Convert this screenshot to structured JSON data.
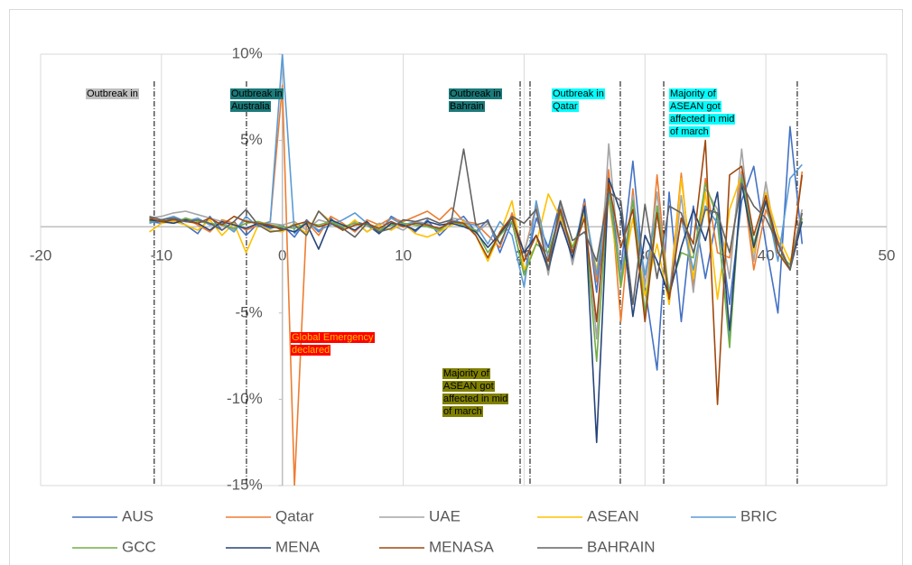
{
  "chart_data": {
    "type": "line",
    "x": [
      -11,
      -10,
      -9,
      -8,
      -7,
      -6,
      -5,
      -4,
      -3,
      -2,
      -1,
      0,
      1,
      2,
      3,
      4,
      5,
      6,
      7,
      8,
      9,
      10,
      11,
      12,
      13,
      14,
      15,
      16,
      17,
      18,
      19,
      20,
      21,
      22,
      23,
      24,
      25,
      26,
      27,
      28,
      29,
      30,
      31,
      32,
      33,
      34,
      35,
      36,
      37,
      38,
      39,
      40,
      41,
      42,
      43
    ],
    "series": [
      {
        "name": "AUS",
        "color": "#4472c4",
        "values": [
          0.3,
          0.2,
          0.5,
          0.1,
          -0.4,
          0.6,
          -0.2,
          0.3,
          -0.5,
          0.2,
          -0.1,
          0.1,
          -0.6,
          0.4,
          -0.3,
          0.5,
          -0.2,
          0.3,
          0.1,
          -0.4,
          0.6,
          0.2,
          -0.3,
          0.4,
          -0.5,
          0.2,
          0.6,
          -0.3,
          0.4,
          -1.5,
          0.3,
          -2.8,
          0.5,
          -1.2,
          1.5,
          -2,
          1.6,
          -3.8,
          2.5,
          -2.5,
          3.8,
          -3.5,
          -8.3,
          2.0,
          -5.5,
          1.2,
          -3,
          0.8,
          -4.5,
          1.5,
          3.5,
          -1,
          -5,
          5.8,
          -1
        ]
      },
      {
        "name": "Qatar",
        "color": "#ed7d31",
        "values": [
          0.4,
          0.3,
          0.2,
          0.5,
          0.1,
          -0.3,
          0.4,
          0.2,
          -0.2,
          0.1,
          0.3,
          8.2,
          -15,
          0.3,
          -0.5,
          0.6,
          0.2,
          -0.3,
          0.4,
          0.1,
          0.5,
          0.3,
          0.6,
          0.9,
          0.4,
          1.1,
          0.3,
          0.2,
          -0.5,
          -1.2,
          0.8,
          -1.5,
          1.2,
          -2.5,
          0.5,
          -1.8,
          1.4,
          -3.2,
          3.3,
          -5.5,
          2.2,
          -5.2,
          3.0,
          -4.2,
          3.1,
          -3.5,
          2.8,
          -1.5,
          -1.8,
          3.2,
          -2.5,
          1.0,
          -0.8,
          -2.5,
          3.2
        ]
      },
      {
        "name": "UAE",
        "color": "#a5a5a5",
        "values": [
          0.5,
          0.6,
          0.8,
          0.9,
          0.7,
          0.5,
          0.3,
          -0.2,
          0.4,
          0.1,
          0.2,
          0.1,
          0.3,
          -0.2,
          0.4,
          0.2,
          -0.1,
          0.3,
          -0.3,
          0.2,
          0.1,
          -0.2,
          0.3,
          0.2,
          -0.3,
          0.5,
          0.4,
          -0.4,
          0.2,
          -1,
          0.6,
          -1.5,
          1.0,
          -2.8,
          1.3,
          -2.2,
          1.0,
          -6.5,
          4.8,
          -3.0,
          1.8,
          -3.5,
          2.0,
          -4.5,
          1.8,
          -3.8,
          2.2,
          1.0,
          -3.0,
          4.5,
          -2.0,
          2.6,
          -1.5,
          -2.2,
          1.0
        ]
      },
      {
        "name": "ASEAN",
        "color": "#ffc000",
        "values": [
          -0.3,
          0.2,
          0.3,
          0.1,
          -0.2,
          0.4,
          -0.5,
          0.2,
          -1.5,
          0.1,
          -0.2,
          -0.3,
          0.2,
          -0.4,
          0.9,
          0.3,
          -0.2,
          0.4,
          -0.3,
          0.1,
          -0.2,
          0.2,
          -0.4,
          -0.6,
          -0.3,
          0.1,
          0.3,
          -0.5,
          -2.0,
          -0.4,
          1.5,
          -2.5,
          -1.0,
          1.9,
          0.5,
          -1.2,
          0.8,
          -2.5,
          1.6,
          -3.5,
          0.5,
          -4.0,
          -1.0,
          -4.5,
          2.8,
          -3.0,
          2.0,
          -4.2,
          1.0,
          3.0,
          -1.5,
          2.0,
          -0.5,
          -2.0,
          0.3
        ]
      },
      {
        "name": "BRIC",
        "color": "#5b9bd5",
        "values": [
          0.2,
          0.4,
          0.6,
          0.3,
          0.5,
          0.1,
          0.2,
          -0.3,
          0.6,
          0.0,
          0.3,
          10,
          -0.4,
          0.3,
          -0.2,
          0.1,
          0.4,
          0.8,
          0.2,
          -0.3,
          0.5,
          0.1,
          0.3,
          0.1,
          -0.2,
          0.4,
          0.2,
          0.1,
          -1.0,
          0.3,
          -0.5,
          -3.5,
          1.5,
          -1.8,
          0.8,
          -1.5,
          1.2,
          -2.8,
          2.0,
          -3.2,
          1.5,
          -2.8,
          1.0,
          -3.8,
          0.5,
          -2.5,
          1.2,
          0.2,
          -6.5,
          3.0,
          -1.0,
          1.5,
          -2.0,
          2.8,
          3.6
        ]
      },
      {
        "name": "GCC",
        "color": "#70ad47",
        "values": [
          0.3,
          0.4,
          0.2,
          0.5,
          0.3,
          0.2,
          0.1,
          -0.1,
          0.2,
          0.3,
          0.1,
          0.0,
          -0.1,
          0.2,
          0.1,
          0.3,
          0.0,
          0.2,
          0.1,
          -0.2,
          0.1,
          0.2,
          0.1,
          0.0,
          -0.2,
          0.3,
          0.1,
          -0.2,
          -1.5,
          -0.5,
          0.3,
          -2.8,
          -1.0,
          -1.5,
          0.8,
          -1.2,
          0.5,
          -7.8,
          2.5,
          -3.5,
          1.5,
          -5.0,
          1.2,
          -3.8,
          -1.5,
          -1.8,
          2.5,
          0.5,
          -7.0,
          2.8,
          -1.0,
          1.5,
          -1.5,
          -2.2,
          0.5
        ]
      },
      {
        "name": "MENA",
        "color": "#264478",
        "values": [
          0.4,
          0.3,
          0.2,
          0.4,
          0.2,
          -0.2,
          0.3,
          0.1,
          -0.1,
          0.2,
          0.0,
          -0.1,
          -0.3,
          0.2,
          -1.3,
          0.4,
          0.1,
          -0.2,
          0.3,
          -0.4,
          0.2,
          0.1,
          -0.2,
          0.3,
          0.1,
          0.2,
          0.0,
          -0.3,
          -1.2,
          -0.4,
          0.5,
          -1.5,
          -0.5,
          -2.5,
          0.3,
          -1.8,
          1.2,
          -12.5,
          2.8,
          0.8,
          -5.2,
          -0.5,
          -2.0,
          -4.0,
          -1.2,
          1.0,
          -0.8,
          2.0,
          -6.0,
          2.5,
          -1.2,
          1.5,
          -1.0,
          -2.5,
          0.3
        ]
      },
      {
        "name": "MENASA",
        "color": "#9e480e",
        "values": [
          0.5,
          0.3,
          0.4,
          0.3,
          0.2,
          0.5,
          0.1,
          0.6,
          0.3,
          0.2,
          0.1,
          -0.2,
          0.1,
          0.3,
          0.0,
          0.2,
          -0.2,
          0.1,
          0.2,
          -0.1,
          0.3,
          0.0,
          0.2,
          0.1,
          -0.1,
          0.3,
          0.2,
          -0.5,
          -1.8,
          -0.3,
          0.6,
          -2.0,
          -0.5,
          -2.0,
          1.0,
          -1.5,
          0.5,
          -5.5,
          2.5,
          -1.2,
          1.0,
          -5.5,
          0.8,
          -4.2,
          0.5,
          -1.0,
          5.0,
          -10.3,
          3.0,
          3.5,
          -0.5,
          1.8,
          -1.5,
          -2.5,
          3.0
        ]
      },
      {
        "name": "BAHRAIN",
        "color": "#636363",
        "values": [
          0.6,
          0.4,
          0.5,
          0.3,
          0.4,
          0.2,
          -0.2,
          0.3,
          1.0,
          0.1,
          -0.3,
          -0.2,
          0.1,
          -0.5,
          0.9,
          0.2,
          -0.1,
          -0.6,
          0.2,
          -0.3,
          -0.1,
          0.4,
          0.3,
          0.5,
          0.2,
          0.4,
          4.5,
          0.1,
          0.3,
          -1.0,
          0.6,
          0.2,
          1.0,
          -2.5,
          1.5,
          -0.8,
          -0.3,
          -2.0,
          2.0,
          1.5,
          -4.5,
          1.3,
          -3.0,
          1.2,
          0.8,
          -1.5,
          1.0,
          0.8,
          -1.5,
          2.5,
          1.2,
          0.5,
          -1.0,
          -2.5,
          0.8
        ]
      }
    ],
    "xlim": [
      -20,
      50
    ],
    "xticks": [
      -20,
      -10,
      0,
      10,
      20,
      30,
      40,
      50
    ],
    "ylim": [
      -15,
      10
    ],
    "yticks": [
      {
        "value": -15,
        "label": "-15%"
      },
      {
        "value": -10,
        "label": "-10%"
      },
      {
        "value": -5,
        "label": "-5%"
      },
      {
        "value": 5,
        "label": "5%"
      },
      {
        "value": 10,
        "label": "10%"
      }
    ],
    "grid": true,
    "legend": "bottom",
    "event_lines": {
      "x": [
        -10.6,
        -2.97,
        19.67,
        20.49,
        27.96,
        31.55,
        42.6
      ]
    },
    "annotations": [
      "Outbreak in",
      "Outbreak in Australia",
      "Outbreak in Bahrain",
      "Outbreak in Qatar",
      "Majority of ASEAN got affected in mid of march",
      "Global Emergency declared",
      "Majority of ASEAN got affected in mid of march"
    ]
  }
}
